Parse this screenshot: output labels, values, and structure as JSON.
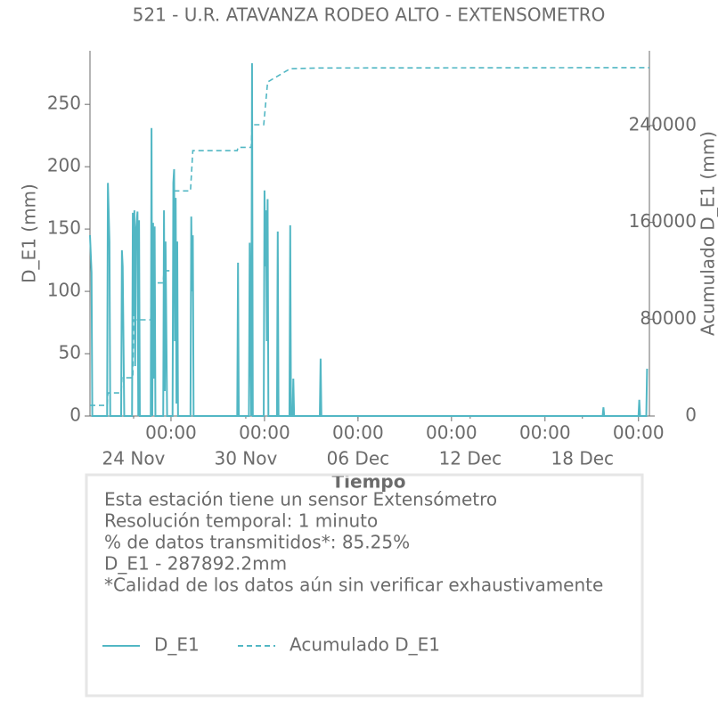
{
  "chart_data": {
    "type": "line",
    "title": "521 - U.R. ATAVANZA RODEO ALTO - EXTENSOMETRO",
    "xlabel": "Tiempo",
    "ylabel": "D_E1 (mm)",
    "y2label": "Acumulado D_E1 (mm)",
    "xlim": [
      "11-21 16:00",
      "12-21 14:00"
    ],
    "xticks": [
      {
        "value": "11-26 00:00",
        "label": "00:00"
      },
      {
        "value": "12-01 00:00",
        "label": "00:00"
      },
      {
        "value": "12-06 00:00",
        "label": "00:00"
      },
      {
        "value": "12-11 00:00",
        "label": "00:00"
      },
      {
        "value": "12-16 00:00",
        "label": "00:00"
      },
      {
        "value": "12-21 00:00",
        "label": "00:00"
      }
    ],
    "xdate_ticks": [
      {
        "value": "11-24 00:00",
        "label": "24 Nov"
      },
      {
        "value": "11-30 00:00",
        "label": "30 Nov"
      },
      {
        "value": "12-06 00:00",
        "label": "06 Dec"
      },
      {
        "value": "12-12 00:00",
        "label": "12 Dec"
      },
      {
        "value": "12-18 00:00",
        "label": "18 Dec"
      }
    ],
    "ylim": [
      0,
      293
    ],
    "yticks": [
      0,
      50,
      100,
      150,
      200,
      250
    ],
    "y2lim": [
      0,
      301800
    ],
    "y2ticks": [
      0,
      80000,
      160000,
      240000
    ],
    "series": [
      {
        "name": "D_E1",
        "color": "#52b7c4",
        "dash": false,
        "x": [
          "11-21 16:00",
          "11-21 18:00",
          "11-21 19:00",
          "11-22 14:00",
          "11-22 15:00",
          "11-22 17:00",
          "11-22 18:00",
          "11-23 08:00",
          "11-23 09:00",
          "11-23 10:00",
          "11-23 12:00",
          "11-23 22:00",
          "11-23 23:00",
          "11-24 00:00",
          "11-24 01:00",
          "11-24 02:00",
          "11-24 03:00",
          "11-24 05:00",
          "11-24 06:00",
          "11-24 07:00",
          "11-24 08:00",
          "11-24 22:00",
          "11-24 23:00",
          "11-25 00:00",
          "11-25 01:00",
          "11-25 02:00",
          "11-25 03:00",
          "11-25 04:00",
          "11-25 14:00",
          "11-25 15:00",
          "11-25 16:00",
          "11-25 17:00",
          "11-25 19:00",
          "11-26 02:00",
          "11-26 03:00",
          "11-26 04:00",
          "11-26 05:00",
          "11-26 06:00",
          "11-26 07:00",
          "11-26 08:00",
          "11-26 09:00",
          "11-27 01:00",
          "11-27 02:00",
          "11-27 03:00",
          "11-27 04:00",
          "11-27 05:00",
          "11-29 13:00",
          "11-29 14:00",
          "11-29 15:00",
          "11-30 04:00",
          "11-30 05:00",
          "11-30 07:00",
          "11-30 08:00",
          "11-30 09:00",
          "11-30 23:00",
          "12-01 00:00",
          "12-01 01:00",
          "12-01 02:00",
          "12-01 03:00",
          "12-01 04:00",
          "12-01 05:00",
          "12-01 16:00",
          "12-01 17:00",
          "12-01 18:00",
          "12-02 08:00",
          "12-02 09:00",
          "12-02 10:00",
          "12-02 12:00",
          "12-02 13:00",
          "12-02 14:00",
          "12-03 23:00",
          "12-04 00:00",
          "12-04 01:00",
          "12-19 02:00",
          "12-19 03:00",
          "12-19 04:00",
          "12-21 00:00",
          "12-21 01:00",
          "12-21 02:00",
          "12-21 10:00",
          "12-21 11:00"
        ],
        "values": [
          145,
          115,
          0,
          0,
          187,
          140,
          0,
          0,
          133,
          120,
          0,
          0,
          163,
          80,
          165,
          40,
          148,
          164,
          0,
          157,
          0,
          0,
          231,
          0,
          155,
          30,
          152,
          0,
          0,
          165,
          20,
          140,
          0,
          0,
          187,
          198,
          60,
          175,
          10,
          140,
          0,
          0,
          160,
          100,
          145,
          0,
          0,
          123,
          0,
          0,
          139,
          0,
          283,
          0,
          0,
          181,
          120,
          165,
          60,
          174,
          0,
          0,
          148,
          0,
          0,
          153,
          0,
          0,
          30,
          0,
          0,
          46,
          0,
          0,
          7,
          0,
          0,
          13,
          0,
          0,
          38
        ]
      },
      {
        "name": "Acumulado D_E1",
        "color": "#52b7c4",
        "dash": true,
        "axis": "y2",
        "x": [
          "11-21 16:00",
          "11-22 14:00",
          "11-22 15:00",
          "11-23 08:00",
          "11-23 09:00",
          "11-23 23:00",
          "11-24 00:00",
          "11-24 22:00",
          "11-24 23:00",
          "11-25 14:00",
          "11-25 15:00",
          "11-26 03:00",
          "11-26 04:00",
          "11-27 01:00",
          "11-27 04:00",
          "11-29 13:00",
          "11-29 14:00",
          "11-30 07:00",
          "11-30 08:00",
          "11-30 23:00",
          "12-01 04:00",
          "12-02 09:00",
          "12-04 00:00",
          "12-21 14:00"
        ],
        "values": [
          8800,
          8800,
          19100,
          19100,
          31600,
          31600,
          79500,
          79500,
          110000,
          110000,
          120000,
          120000,
          186000,
          186000,
          219300,
          219300,
          222000,
          222000,
          240700,
          240700,
          276000,
          287000,
          287600,
          287892.2
        ]
      }
    ],
    "annotations": [
      "Esta estación tiene un sensor Extensómetro",
      "Resolución temporal: 1 minuto",
      "% de datos transmitidos*: 85.25%",
      "D_E1 - 287892.2mm",
      "*Calidad de los datos aún sin verificar exhaustivamente"
    ]
  }
}
